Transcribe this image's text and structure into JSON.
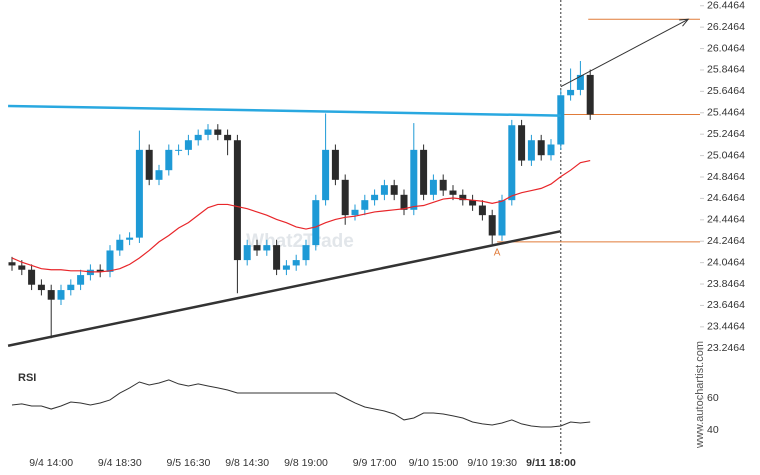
{
  "chart_data": [
    {
      "type": "candlestick",
      "categories": [
        null,
        null,
        null,
        null,
        "9/4 14:00",
        null,
        null,
        null,
        null,
        null,
        null,
        "9/4 18:30",
        null,
        null,
        null,
        null,
        null,
        null,
        "9/5 16:30",
        null,
        null,
        null,
        null,
        null,
        "9/8 14:30",
        null,
        null,
        null,
        null,
        null,
        "9/8 19:00",
        null,
        null,
        null,
        null,
        null,
        null,
        "9/9 17:00",
        null,
        null,
        null,
        null,
        null,
        "9/10 15:00",
        null,
        null,
        null,
        null,
        null,
        "9/10 19:30",
        null,
        null,
        null,
        null,
        null,
        "9/11 18:00",
        null,
        null,
        null,
        null
      ],
      "highlight_category": 55,
      "open": [
        24.05,
        24.02,
        23.98,
        23.84,
        23.79,
        23.7,
        23.79,
        23.84,
        23.93,
        23.98,
        23.96,
        24.16,
        24.26,
        24.28,
        25.1,
        24.82,
        24.91,
        25.1,
        25.1,
        25.19,
        25.24,
        25.29,
        25.24,
        25.19,
        24.07,
        24.21,
        24.16,
        24.21,
        23.98,
        24.02,
        24.07,
        24.21,
        24.63,
        25.1,
        24.82,
        24.49,
        24.54,
        24.63,
        24.68,
        24.77,
        24.68,
        24.54,
        25.1,
        24.68,
        24.82,
        24.72,
        24.68,
        24.63,
        24.58,
        24.49,
        24.3,
        24.63,
        25.33,
        25.0,
        25.19,
        25.05,
        25.15,
        25.61,
        25.66,
        25.8
      ],
      "high": [
        24.1,
        24.07,
        24.03,
        23.89,
        23.84,
        23.84,
        23.89,
        23.98,
        24.03,
        24.03,
        24.21,
        24.31,
        24.33,
        25.28,
        25.15,
        24.96,
        25.15,
        25.15,
        25.24,
        25.29,
        25.34,
        25.34,
        25.29,
        25.24,
        24.26,
        24.26,
        24.26,
        24.26,
        24.07,
        24.12,
        24.26,
        24.68,
        25.44,
        25.15,
        24.87,
        24.59,
        24.68,
        24.73,
        24.82,
        24.82,
        24.73,
        25.35,
        25.15,
        24.87,
        24.87,
        24.77,
        24.73,
        24.68,
        24.63,
        24.54,
        24.68,
        25.38,
        25.38,
        25.24,
        25.24,
        25.2,
        25.66,
        25.86,
        25.93,
        25.85
      ],
      "low": [
        23.97,
        23.93,
        23.79,
        23.74,
        23.34,
        23.65,
        23.74,
        23.79,
        23.88,
        23.91,
        23.91,
        24.11,
        24.21,
        24.23,
        24.77,
        24.77,
        24.86,
        25.05,
        25.05,
        25.14,
        25.19,
        25.19,
        25.05,
        23.76,
        24.02,
        24.11,
        24.11,
        23.93,
        23.93,
        23.97,
        24.02,
        24.16,
        24.58,
        24.77,
        24.4,
        24.44,
        24.49,
        24.58,
        24.63,
        24.63,
        24.49,
        24.49,
        24.63,
        24.63,
        24.67,
        24.63,
        24.58,
        24.53,
        24.44,
        24.22,
        24.25,
        24.58,
        24.95,
        24.95,
        25.0,
        25.0,
        25.1,
        25.56,
        25.61,
        25.38
      ],
      "close": [
        24.02,
        23.98,
        23.84,
        23.79,
        23.7,
        23.79,
        23.84,
        23.93,
        23.98,
        23.96,
        24.16,
        24.26,
        24.28,
        25.1,
        24.82,
        24.91,
        25.1,
        25.1,
        25.19,
        25.24,
        25.29,
        25.24,
        25.19,
        24.07,
        24.21,
        24.16,
        24.21,
        23.98,
        24.02,
        24.07,
        24.21,
        24.63,
        25.1,
        24.82,
        24.49,
        24.54,
        24.63,
        24.68,
        24.77,
        24.68,
        24.54,
        25.1,
        24.68,
        24.82,
        24.72,
        24.68,
        24.63,
        24.58,
        24.49,
        24.3,
        24.63,
        25.33,
        25.0,
        25.19,
        25.05,
        25.15,
        25.61,
        25.66,
        25.8,
        25.43
      ],
      "up_color": "#1e9ad6",
      "down_color": "#2b2b2b",
      "ma_values": [
        24.09,
        24.05,
        24.02,
        23.99,
        23.98,
        23.98,
        23.97,
        23.97,
        23.96,
        23.96,
        23.97,
        23.99,
        24.03,
        24.09,
        24.16,
        24.24,
        24.3,
        24.37,
        24.42,
        24.49,
        24.56,
        24.59,
        24.59,
        24.57,
        24.55,
        24.52,
        24.49,
        24.45,
        24.42,
        24.38,
        24.36,
        24.38,
        24.42,
        24.45,
        24.47,
        24.48,
        24.5,
        24.52,
        24.53,
        24.54,
        24.55,
        24.57,
        24.58,
        24.61,
        24.64,
        24.65,
        24.64,
        24.63,
        24.62,
        24.6,
        24.62,
        24.67,
        24.7,
        24.72,
        24.74,
        24.78,
        24.85,
        24.91,
        24.98,
        25.0
      ],
      "ma_color": "#e8262a",
      "trendlines": [
        {
          "color": "#29a8e0",
          "x": [
            -0.4,
            56
          ],
          "y": [
            25.51,
            25.42
          ]
        },
        {
          "color": "#333333",
          "x": [
            -0.4,
            56
          ],
          "y": [
            23.27,
            24.34
          ]
        }
      ],
      "arrow": {
        "color": "#333333",
        "x": [
          56,
          69
        ],
        "y": [
          25.69,
          26.32
        ]
      },
      "levels": [
        {
          "color": "#e07b39",
          "from": 58.8,
          "value": 26.32
        },
        {
          "color": "#e07b39",
          "from": 56,
          "value": 25.43
        },
        {
          "color": "#e07b39",
          "from": 49.5,
          "value": 24.24
        }
      ],
      "point_label": {
        "text": "A",
        "x": 49.5,
        "y": 24.14,
        "color": "#e07b39"
      },
      "marker_index": 56,
      "ylim": [
        23.09,
        26.5
      ],
      "yticks": [
        23.2464,
        23.4464,
        23.6464,
        23.8464,
        24.0464,
        24.2464,
        24.4464,
        24.6464,
        24.8464,
        25.0464,
        25.2464,
        25.4464,
        25.6464,
        25.8464,
        26.0464,
        26.2464,
        26.4464
      ],
      "watermark": "What2Trade",
      "source": "www.autochartist.com"
    },
    {
      "type": "line",
      "title": "RSI",
      "color": "#333333",
      "values": [
        55.6,
        56.3,
        55.0,
        55.0,
        53.1,
        55.0,
        57.5,
        56.9,
        55.6,
        56.9,
        58.8,
        63.1,
        66.3,
        70.0,
        68.1,
        69.4,
        71.3,
        68.8,
        67.5,
        68.8,
        67.5,
        66.3,
        65.0,
        63.1,
        63.1,
        63.1,
        63.1,
        63.1,
        63.1,
        63.1,
        63.1,
        63.1,
        63.1,
        63.1,
        60.0,
        56.9,
        54.4,
        53.1,
        51.9,
        50.0,
        46.3,
        47.5,
        50.6,
        50.6,
        50.0,
        48.8,
        47.5,
        45.0,
        43.8,
        43.1,
        44.4,
        46.3,
        43.8,
        42.5,
        41.9,
        41.9,
        42.5,
        45.0,
        44.4,
        45.0
      ],
      "ylim": [
        28.75,
        76.25
      ],
      "yticks": [
        40,
        60
      ]
    }
  ]
}
